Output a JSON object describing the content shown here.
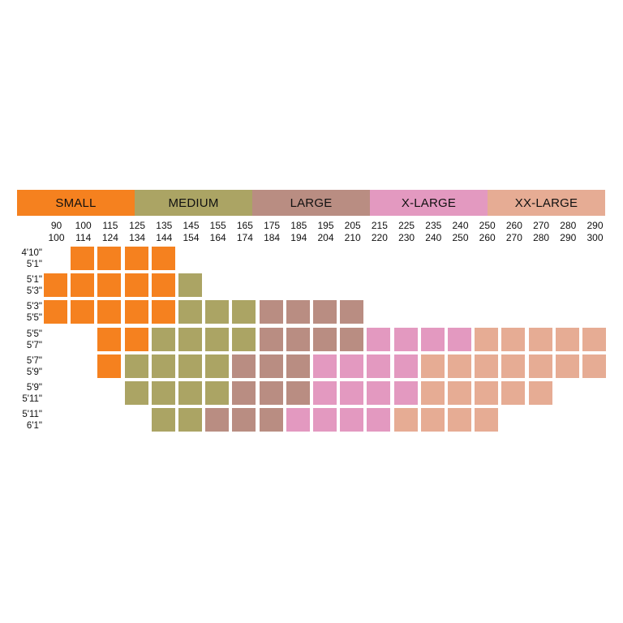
{
  "chart_data": {
    "type": "heatmap",
    "size_bands": [
      {
        "label": "SMALL",
        "color": "#F5811F",
        "span": 4.5
      },
      {
        "label": "MEDIUM",
        "color": "#ABA464",
        "span": 4.5
      },
      {
        "label": "LARGE",
        "color": "#B98D82",
        "span": 4.5
      },
      {
        "label": "X-LARGE",
        "color": "#E399C0",
        "span": 4.5
      },
      {
        "label": "XX-LARGE",
        "color": "#E6AC94",
        "span": 4.5
      }
    ],
    "weight_columns": [
      {
        "low": "90",
        "high": "100"
      },
      {
        "low": "100",
        "high": "114"
      },
      {
        "low": "115",
        "high": "124"
      },
      {
        "low": "125",
        "high": "134"
      },
      {
        "low": "135",
        "high": "144"
      },
      {
        "low": "145",
        "high": "154"
      },
      {
        "low": "155",
        "high": "164"
      },
      {
        "low": "165",
        "high": "174"
      },
      {
        "low": "175",
        "high": "184"
      },
      {
        "low": "185",
        "high": "194"
      },
      {
        "low": "195",
        "high": "204"
      },
      {
        "low": "205",
        "high": "210"
      },
      {
        "low": "215",
        "high": "220"
      },
      {
        "low": "225",
        "high": "230"
      },
      {
        "low": "235",
        "high": "240"
      },
      {
        "low": "240",
        "high": "250"
      },
      {
        "low": "250",
        "high": "260"
      },
      {
        "low": "260",
        "high": "270"
      },
      {
        "low": "270",
        "high": "280"
      },
      {
        "low": "280",
        "high": "290"
      },
      {
        "low": "290",
        "high": "300"
      }
    ],
    "height_rows": [
      {
        "low": "4'10\"",
        "high": "5'1\""
      },
      {
        "low": "5'1\"",
        "high": "5'3\""
      },
      {
        "low": "5'3\"",
        "high": "5'5\""
      },
      {
        "low": "5'5\"",
        "high": "5'7\""
      },
      {
        "low": "5'7\"",
        "high": "5'9\""
      },
      {
        "low": "5'9\"",
        "high": "5'11\""
      },
      {
        "low": "5'11\"",
        "high": "6'1\""
      }
    ],
    "grid": [
      ".SSSS................",
      "SSSSSM...............",
      "SSSSSMMMLLLL.........",
      "..SSMMMMLLLLXXXXWWWWW",
      "..SMMMMLLLXXXXWWWWWWW",
      "...MMMMLLLXXXXWWWWW..",
      "....MMLLLXXXXWWWW...."
    ],
    "legend": {
      "S": "SMALL",
      "M": "MEDIUM",
      "L": "LARGE",
      "X": "X-LARGE",
      "W": "XX-LARGE"
    }
  }
}
